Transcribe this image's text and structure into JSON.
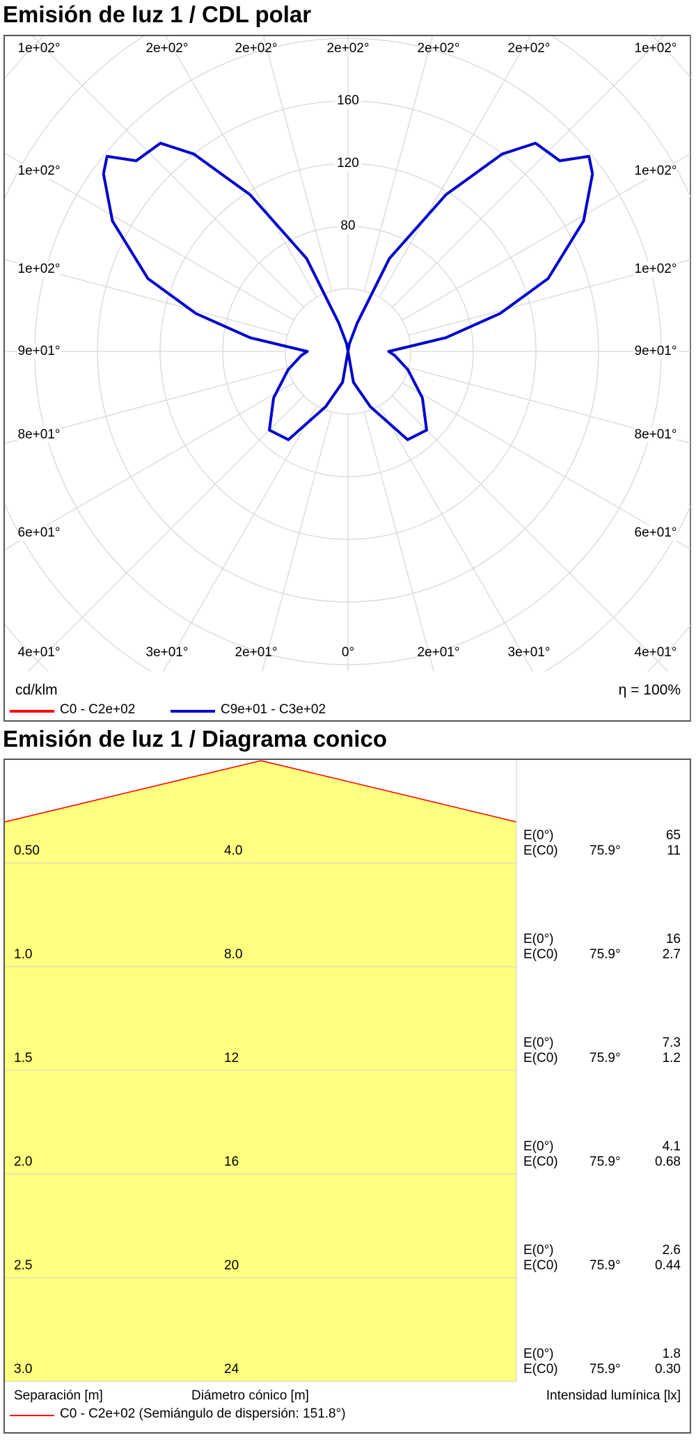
{
  "polar": {
    "title": "Emisión de luz 1 / CDL polar",
    "unit": "cd/klm",
    "efficiency": "η = 100%",
    "top_labels": [
      "1e+02°",
      "2e+02°",
      "2e+02°",
      "2e+02°",
      "2e+02°",
      "2e+02°",
      "1e+02°"
    ],
    "side_labels": [
      "1e+02°",
      "1e+02°",
      "9e+01°",
      "8e+01°",
      "6e+01°"
    ],
    "bottom_labels": [
      "4e+01°",
      "3e+01°",
      "2e+01°",
      "0°",
      "2e+01°",
      "3e+01°",
      "4e+01°"
    ],
    "ring_labels": [
      "80",
      "120",
      "160"
    ],
    "legend": [
      {
        "name": "C0 - C2e+02",
        "color": "#ff0000"
      },
      {
        "name": "C9e+01 - C3e+02",
        "color": "#0000cc"
      }
    ]
  },
  "chart_data": [
    {
      "type": "polar",
      "title": "Emisión de luz 1 / CDL polar",
      "unit": "cd/klm",
      "radial_ticks": [
        80,
        120,
        160
      ],
      "grid": true,
      "series": [
        {
          "name": "C9e+01 - C3e+02",
          "color": "#0000cc",
          "angles": [
            0,
            10,
            22,
            34,
            45,
            58,
            73,
            85,
            90,
            98,
            104,
            110,
            119,
            126,
            129,
            132,
            138,
            142,
            148,
            156,
            162,
            170,
            180
          ],
          "values": [
            0,
            20,
            38,
            68,
            71,
            56,
            40,
            30,
            26,
            63,
            100,
            136,
            172,
            193,
            198,
            182,
            179,
            160,
            118,
            65,
            19,
            5,
            0
          ]
        }
      ]
    },
    {
      "type": "table",
      "title": "Emisión de luz 1 / Diagrama conico",
      "headers": [
        "Separación [m]",
        "Diámetro cónico [m]",
        "Intensidad lumínica [lx]"
      ],
      "legend": "C0 - C2e+02 (Semiángulo de dispersión: 151.8°)",
      "rows": [
        {
          "h": "0.50",
          "d": "4.0",
          "e0_label": "E(0°)",
          "e0": "65",
          "ec_label": "E(C0)",
          "angle": "75.9°",
          "ec": "11"
        },
        {
          "h": "1.0",
          "d": "8.0",
          "e0_label": "E(0°)",
          "e0": "16",
          "ec_label": "E(C0)",
          "angle": "75.9°",
          "ec": "2.7"
        },
        {
          "h": "1.5",
          "d": "12",
          "e0_label": "E(0°)",
          "e0": "7.3",
          "ec_label": "E(C0)",
          "angle": "75.9°",
          "ec": "1.2"
        },
        {
          "h": "2.0",
          "d": "16",
          "e0_label": "E(0°)",
          "e0": "4.1",
          "ec_label": "E(C0)",
          "angle": "75.9°",
          "ec": "0.68"
        },
        {
          "h": "2.5",
          "d": "20",
          "e0_label": "E(0°)",
          "e0": "2.6",
          "ec_label": "E(C0)",
          "angle": "75.9°",
          "ec": "0.44"
        },
        {
          "h": "3.0",
          "d": "24",
          "e0_label": "E(0°)",
          "e0": "1.8",
          "ec_label": "E(C0)",
          "angle": "75.9°",
          "ec": "0.30"
        }
      ],
      "fill_color": "#ffff80",
      "line_color": "#ff0000"
    }
  ]
}
